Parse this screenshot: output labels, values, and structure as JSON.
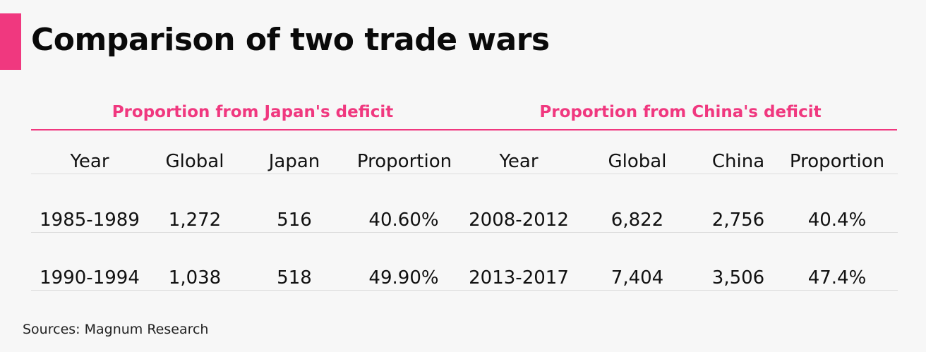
{
  "title": "Comparison of two trade wars",
  "accent_color": "#f0387f",
  "source": "Sources: Magnum Research",
  "chart_data": {
    "type": "table",
    "title": "Comparison of two trade wars",
    "groups": [
      {
        "heading": "Proportion from Japan's deficit",
        "columns": [
          "Year",
          "Global",
          "Japan",
          "Proportion"
        ],
        "rows": [
          [
            "1985-1989",
            "1,272",
            "516",
            "40.60%"
          ],
          [
            "1990-1994",
            "1,038",
            "518",
            "49.90%"
          ]
        ]
      },
      {
        "heading": "Proportion from China's deficit",
        "columns": [
          "Year",
          "Global",
          "China",
          "Proportion"
        ],
        "rows": [
          [
            "2008-2012",
            "6,822",
            "2,756",
            "40.4%"
          ],
          [
            "2013-2017",
            "7,404",
            "3,506",
            "47.4%"
          ]
        ]
      }
    ]
  }
}
